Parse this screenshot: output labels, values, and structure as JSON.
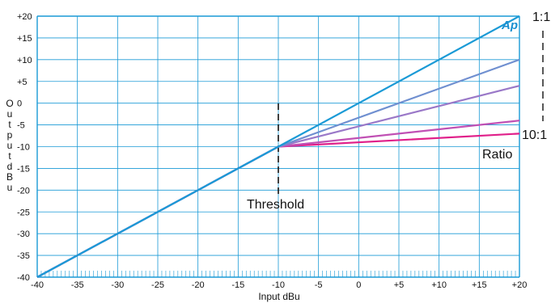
{
  "chart_data": {
    "type": "line",
    "title": "",
    "xlabel": "Input dBu",
    "ylabel": "Output dBu",
    "xlim": [
      -40,
      20
    ],
    "ylim": [
      -40,
      20
    ],
    "grid": true,
    "x_ticks": [
      "-40",
      "-35",
      "-30",
      "-25",
      "-20",
      "-15",
      "-10",
      "-5",
      "0",
      "+5",
      "+10",
      "+15",
      "+20"
    ],
    "y_ticks": [
      "+20",
      "+15",
      "+10",
      "+5",
      "0",
      "-5",
      "-10",
      "-15",
      "-20",
      "-25",
      "-30",
      "-35",
      "-40"
    ],
    "threshold_x": -10,
    "series": [
      {
        "color": "#1a9ad6",
        "x": [
          -40,
          -10,
          20
        ],
        "y": [
          -40,
          -10,
          20
        ]
      },
      {
        "color": "#6f8fd0",
        "x": [
          -40,
          -10,
          20
        ],
        "y": [
          -40,
          -10,
          10
        ]
      },
      {
        "color": "#9a78c8",
        "x": [
          -40,
          -10,
          20
        ],
        "y": [
          -40,
          -10,
          4
        ]
      },
      {
        "color": "#c050b4",
        "x": [
          -40,
          -10,
          20
        ],
        "y": [
          -40,
          -10,
          -4
        ]
      },
      {
        "color": "#e0208a",
        "x": [
          -40,
          -10,
          20
        ],
        "y": [
          -40,
          -10,
          -7
        ]
      }
    ],
    "annotations": {
      "threshold": "Threshold",
      "ratio": "Ratio",
      "ratio_top": "1:1",
      "ratio_bottom": "10:1",
      "logo": "Ap"
    }
  },
  "colors": {
    "grid": "#1a9ad6",
    "frame": "#1a9ad6",
    "threshold_marker": "#111111"
  }
}
